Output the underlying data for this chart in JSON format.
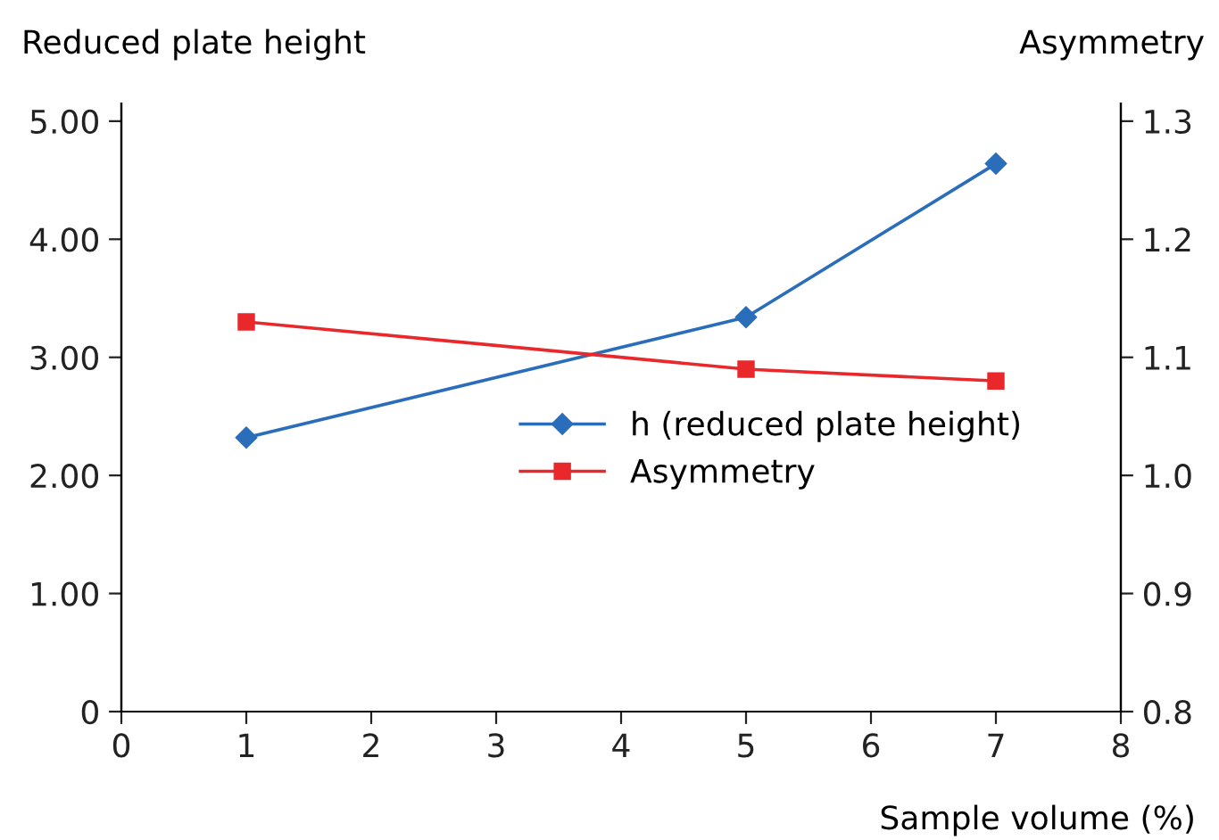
{
  "chart_data": {
    "type": "line",
    "ylabel": "Reduced plate height",
    "y2label": "Asymmetry",
    "xlabel": "Sample volume (%)",
    "x": [
      1,
      5,
      7
    ],
    "series": [
      {
        "name": "h (reduced plate height)",
        "color": "#2a6ebb",
        "values": [
          2.32,
          3.34,
          4.64
        ],
        "marker": "diamond"
      },
      {
        "name": "Asymmetry",
        "color": "#e8282b",
        "values": [
          1.13,
          1.09,
          1.08
        ],
        "marker": "square",
        "axis": "y2"
      }
    ],
    "xlim": [
      0,
      8
    ],
    "xticks": [
      0,
      1,
      2,
      3,
      4,
      5,
      6,
      7,
      8
    ],
    "ylim": [
      0,
      5.15
    ],
    "yticks": [
      0,
      {
        "value": 1,
        "label": "1.00"
      },
      {
        "value": 2,
        "label": "2.00"
      },
      {
        "value": 3,
        "label": "3.00"
      },
      {
        "value": 4,
        "label": "4.00"
      },
      {
        "value": 5,
        "label": "5.00"
      }
    ],
    "y2lim": [
      0.8,
      1.315
    ],
    "y2ticks": [
      0.8,
      0.9,
      {
        "value": 1.0,
        "label": "1.0"
      },
      1.1,
      1.2,
      1.3
    ],
    "grid": false,
    "legend": "center right",
    "line_style": "solid"
  }
}
